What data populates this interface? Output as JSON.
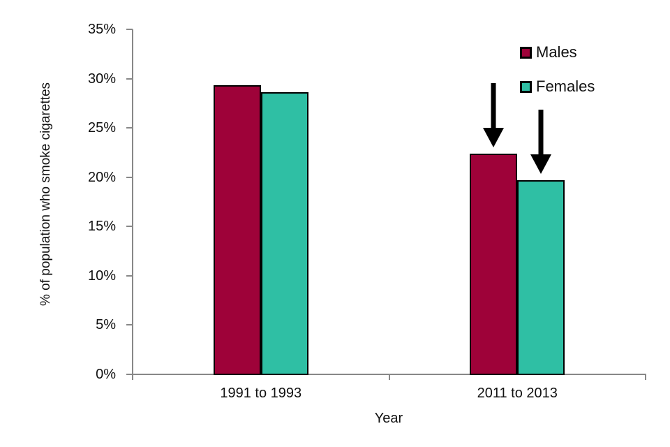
{
  "chart_data": {
    "type": "bar",
    "title": "",
    "xlabel": "Year",
    "ylabel": "% of population who smoke cigarettes",
    "categories": [
      "1991 to 1993",
      "2011 to 2013"
    ],
    "series": [
      {
        "name": "Males",
        "color": "#9E0239",
        "values": [
          29.3,
          22.4
        ]
      },
      {
        "name": "Females",
        "color": "#2FBFA4",
        "values": [
          28.6,
          19.7
        ]
      }
    ],
    "ylim": [
      0,
      35
    ],
    "yticks": [
      0,
      5,
      10,
      15,
      20,
      25,
      30,
      35
    ],
    "ytick_labels": [
      "0%",
      "5%",
      "10%",
      "15%",
      "20%",
      "25%",
      "30%",
      "35%"
    ],
    "grid": false,
    "legend": {
      "position": "top-right",
      "entries": [
        "Males",
        "Females"
      ]
    },
    "bar_border_color": "#000000",
    "axis_color": "#888888",
    "annotations": [
      {
        "type": "down-arrow",
        "color": "#000000",
        "target_series": "Males",
        "target_category": "2011 to 2013"
      },
      {
        "type": "down-arrow",
        "color": "#000000",
        "target_series": "Females",
        "target_category": "2011 to 2013"
      }
    ]
  }
}
